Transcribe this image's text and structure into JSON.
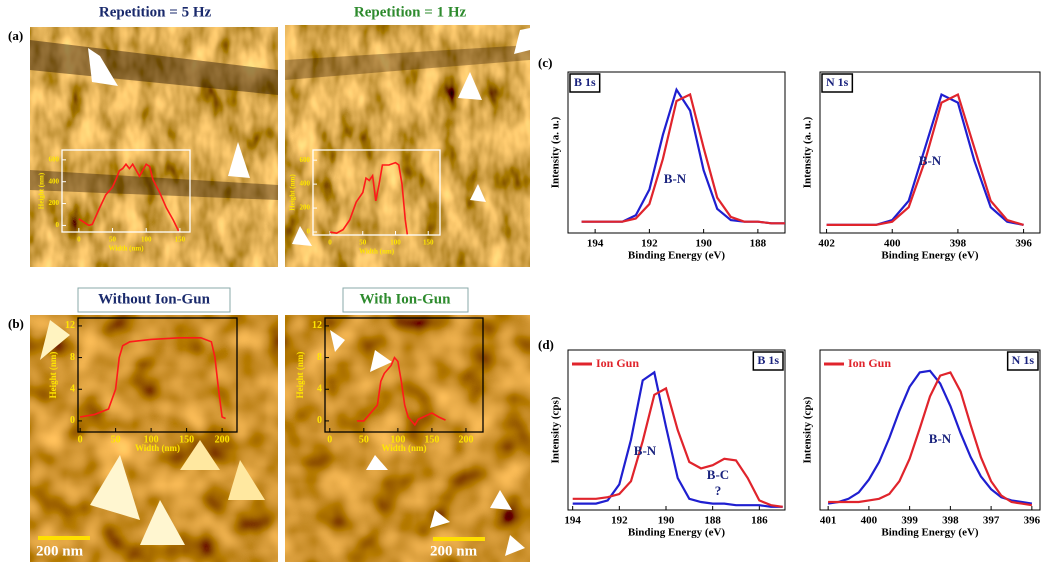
{
  "panel_labels": [
    "(a)",
    "(b)",
    "(c)",
    "(d)"
  ],
  "images": [
    {
      "title": "Repetition = 5 Hz"
    },
    {
      "title": "Repetition = 1 Hz"
    },
    {
      "title": "Without Ion-Gun",
      "scale_bar": "200 nm"
    },
    {
      "title": "With Ion-Gun",
      "scale_bar": "200 nm"
    }
  ],
  "chart_data": [
    {
      "type": "line",
      "xlabel": "Width (nm)",
      "ylabel": "Height (nm)",
      "x": [
        0,
        5,
        10,
        15,
        20,
        30,
        40,
        50,
        55,
        60,
        65,
        70,
        75,
        80,
        90,
        100,
        105,
        110,
        120,
        130,
        140,
        148
      ],
      "series": [
        {
          "color": "#ff1a1a",
          "values": [
            60,
            40,
            20,
            0,
            10,
            150,
            280,
            350,
            420,
            500,
            520,
            560,
            520,
            560,
            450,
            560,
            540,
            420,
            300,
            160,
            50,
            -50
          ]
        }
      ],
      "xlim": [
        -25,
        165
      ],
      "ylim": [
        -60,
        690
      ],
      "xticks": [
        0,
        50,
        100,
        150
      ],
      "yticks": [
        0,
        200,
        400,
        600
      ]
    },
    {
      "type": "line",
      "xlabel": "Width (nm)",
      "ylabel": "Height (nm)",
      "x": [
        0,
        10,
        20,
        30,
        40,
        50,
        55,
        60,
        65,
        70,
        75,
        80,
        90,
        100,
        105,
        110,
        115,
        118
      ],
      "series": [
        {
          "color": "#ff1a1a",
          "values": [
            0,
            -10,
            20,
            100,
            250,
            330,
            450,
            430,
            470,
            260,
            400,
            560,
            560,
            580,
            560,
            400,
            100,
            -20
          ]
        }
      ],
      "xlim": [
        -26,
        168
      ],
      "ylim": [
        -25,
        685
      ],
      "xticks": [
        0,
        50,
        100,
        150
      ],
      "yticks": [
        0,
        200,
        400,
        600
      ]
    },
    {
      "type": "line",
      "xlabel": "Width (nm)",
      "ylabel": "Height (nm)",
      "x": [
        0,
        20,
        40,
        50,
        55,
        60,
        70,
        100,
        140,
        170,
        185,
        190,
        195,
        200,
        205
      ],
      "series": [
        {
          "color": "#ff1a1a",
          "values": [
            0.5,
            0.8,
            1.5,
            4,
            8,
            9.5,
            10,
            10.3,
            10.5,
            10.5,
            10,
            8,
            4,
            0.5,
            0.3
          ]
        }
      ],
      "xlim": [
        -3,
        221
      ],
      "ylim": [
        -1.4,
        13
      ],
      "xticks": [
        0,
        50,
        100,
        150,
        200
      ],
      "yticks": [
        0,
        4,
        8,
        12
      ]
    },
    {
      "type": "line",
      "xlabel": "Width (nm)",
      "ylabel": "Height (nm)",
      "x": [
        40,
        50,
        55,
        60,
        70,
        75,
        80,
        90,
        95,
        100,
        105,
        110,
        115,
        125,
        130,
        150,
        160,
        170
      ],
      "series": [
        {
          "color": "#ff1a1a",
          "values": [
            0,
            0,
            0.5,
            1,
            2,
            5,
            6,
            7,
            8,
            7.5,
            5,
            2,
            0.5,
            -0.5,
            0.2,
            1,
            0.5,
            0.1
          ]
        }
      ],
      "xlim": [
        -7,
        225
      ],
      "ylim": [
        -1.4,
        13
      ],
      "xticks": [
        0,
        50,
        100,
        150,
        200
      ],
      "yticks": [
        0,
        4,
        8,
        12
      ]
    },
    {
      "type": "line",
      "label": "B 1s",
      "annotations": [
        "B-N"
      ],
      "xlabel": "Binding Energy (eV)",
      "ylabel": "Intensity (a. u.)",
      "x": [
        194.5,
        194,
        193.5,
        193,
        192.5,
        192,
        191.5,
        191,
        190.5,
        190,
        189.5,
        189,
        188.5,
        188,
        187.5,
        187
      ],
      "series": [
        {
          "color": "#1f1fd0",
          "values": [
            0.07,
            0.07,
            0.07,
            0.07,
            0.11,
            0.27,
            0.61,
            0.89,
            0.76,
            0.39,
            0.15,
            0.08,
            0.07,
            0.07,
            0.06,
            0.06
          ]
        },
        {
          "color": "#e0242c",
          "values": [
            0.07,
            0.07,
            0.07,
            0.07,
            0.09,
            0.18,
            0.46,
            0.82,
            0.86,
            0.53,
            0.22,
            0.1,
            0.07,
            0.07,
            0.06,
            0.06
          ]
        }
      ],
      "xlim": [
        195,
        187
      ],
      "ylim": [
        0,
        1
      ],
      "xticks": [
        194,
        192,
        190,
        188
      ]
    },
    {
      "type": "line",
      "label": "N 1s",
      "annotations": [
        "B-N"
      ],
      "xlabel": "Binding Energy (eV)",
      "ylabel": "Intensity (a. u.)",
      "x": [
        402,
        401.5,
        401,
        400.5,
        400,
        399.5,
        399,
        398.5,
        398,
        397.5,
        397,
        396.5,
        396
      ],
      "series": [
        {
          "color": "#1f1fd0",
          "values": [
            0.05,
            0.05,
            0.05,
            0.05,
            0.08,
            0.2,
            0.53,
            0.86,
            0.81,
            0.45,
            0.16,
            0.07,
            0.05
          ]
        },
        {
          "color": "#e0242c",
          "values": [
            0.05,
            0.05,
            0.05,
            0.05,
            0.07,
            0.16,
            0.45,
            0.81,
            0.86,
            0.53,
            0.2,
            0.08,
            0.05
          ]
        }
      ],
      "xlim": [
        402.2,
        395.5
      ],
      "ylim": [
        0,
        1
      ],
      "xticks": [
        402,
        400,
        398,
        396
      ]
    },
    {
      "type": "line",
      "label": "B 1s",
      "annotations": [
        "B-N",
        "B-C",
        "?"
      ],
      "legend": "upper left",
      "xlabel": "Binding Energy (eV)",
      "ylabel": "Intensity (cps)",
      "x": [
        194,
        193.5,
        193,
        192.5,
        192,
        191.5,
        191,
        190.5,
        190,
        189.5,
        189,
        188.5,
        188,
        187.5,
        187,
        186.5,
        186,
        185.5,
        185
      ],
      "series": [
        {
          "color": "#1f1fd0",
          "values": [
            0.04,
            0.04,
            0.04,
            0.06,
            0.16,
            0.44,
            0.81,
            0.86,
            0.52,
            0.2,
            0.07,
            0.05,
            0.04,
            0.04,
            0.03,
            0.03,
            0.03,
            0.02,
            0.02
          ]
        },
        {
          "name": "Ion Gun",
          "color": "#e0242c",
          "values": [
            0.07,
            0.07,
            0.07,
            0.08,
            0.1,
            0.18,
            0.43,
            0.72,
            0.76,
            0.5,
            0.3,
            0.26,
            0.28,
            0.32,
            0.31,
            0.2,
            0.06,
            0.03,
            0.02
          ]
        }
      ],
      "xlim": [
        194.2,
        184.9
      ],
      "ylim": [
        0,
        1
      ],
      "xticks": [
        194,
        192,
        190,
        188,
        186
      ]
    },
    {
      "type": "line",
      "label": "N 1s",
      "annotations": [
        "B-N"
      ],
      "legend": "upper left",
      "xlabel": "Binding Energy (eV)",
      "ylabel": "Intensity (cps)",
      "x": [
        401,
        400.75,
        400.5,
        400.25,
        400,
        399.75,
        399.5,
        399.25,
        399,
        398.75,
        398.5,
        398.25,
        398,
        397.75,
        397.5,
        397.25,
        397,
        396.75,
        396.5,
        396.25,
        396
      ],
      "series": [
        {
          "color": "#1f1fd0",
          "values": [
            0.04,
            0.05,
            0.07,
            0.11,
            0.19,
            0.3,
            0.45,
            0.62,
            0.77,
            0.86,
            0.87,
            0.79,
            0.65,
            0.48,
            0.33,
            0.21,
            0.13,
            0.08,
            0.06,
            0.05,
            0.04
          ]
        },
        {
          "name": "Ion Gun",
          "color": "#e0242c",
          "values": [
            0.05,
            0.05,
            0.05,
            0.05,
            0.06,
            0.07,
            0.1,
            0.18,
            0.32,
            0.51,
            0.71,
            0.84,
            0.86,
            0.74,
            0.53,
            0.33,
            0.18,
            0.09,
            0.05,
            0.04,
            0.03
          ]
        }
      ],
      "xlim": [
        401.2,
        395.8
      ],
      "ylim": [
        0,
        1
      ],
      "xticks": [
        401,
        400,
        399,
        398,
        397,
        396
      ]
    }
  ]
}
